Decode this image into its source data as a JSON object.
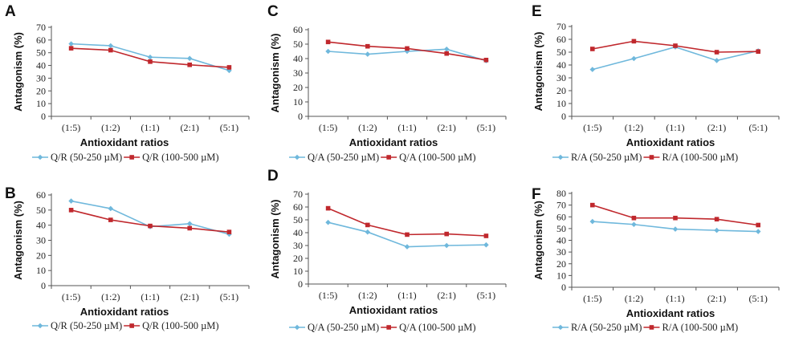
{
  "series_styles": {
    "low": {
      "color": "#6fb8dc",
      "marker": "diamond"
    },
    "high": {
      "color": "#c0282d",
      "marker": "square"
    }
  },
  "chart_data": [
    {
      "panel": "A",
      "type": "line",
      "xlabel": "Antioxidant ratios",
      "ylabel": "Antagonism (%)",
      "categories": [
        "(1:5)",
        "(1:2)",
        "(1:1)",
        "(2:1)",
        "(5:1)"
      ],
      "ylim": [
        0,
        70
      ],
      "ytick_step": 10,
      "series": [
        {
          "name": "Q/R (50-250 µM)",
          "style": "low",
          "values": [
            57,
            55.5,
            46.5,
            45.5,
            36
          ]
        },
        {
          "name": "Q/R (100-500 µM)",
          "style": "high",
          "values": [
            53.5,
            52,
            43,
            40.5,
            38.5
          ]
        }
      ]
    },
    {
      "panel": "B",
      "type": "line",
      "xlabel": "Antioxidant ratios",
      "ylabel": "Antagonism (%)",
      "categories": [
        "(1:5)",
        "(1:2)",
        "(1:1)",
        "(2:1)",
        "(5:1)"
      ],
      "ylim": [
        0,
        60
      ],
      "ytick_step": 10,
      "series": [
        {
          "name": "Q/R (50-250 µM)",
          "style": "low",
          "values": [
            56,
            51,
            39,
            41,
            34
          ]
        },
        {
          "name": "Q/R (100-500 µM)",
          "style": "high",
          "values": [
            50,
            43.5,
            39.5,
            38,
            35.5
          ]
        }
      ]
    },
    {
      "panel": "C",
      "type": "line",
      "xlabel": "Antioxidant ratios",
      "ylabel": "Antagonism (%)",
      "categories": [
        "(1:5)",
        "(1:2)",
        "(1:1)",
        "(2:1)",
        "(5:1)"
      ],
      "ylim": [
        0,
        60
      ],
      "ytick_step": 10,
      "series": [
        {
          "name": "Q/A (50-250 µM)",
          "style": "low",
          "values": [
            45,
            43,
            45,
            46.5,
            38.5
          ]
        },
        {
          "name": "Q/A (100-500 µM)",
          "style": "high",
          "values": [
            51.5,
            48.5,
            47,
            43.5,
            39
          ]
        }
      ]
    },
    {
      "panel": "D",
      "type": "line",
      "xlabel": "Antioxidant ratios",
      "ylabel": "Antagonism (%)",
      "categories": [
        "(1:5)",
        "(1:2)",
        "(1:1)",
        "(2:1)",
        "(5:1)"
      ],
      "ylim": [
        0,
        70
      ],
      "ytick_step": 10,
      "series": [
        {
          "name": "Q/A (50-250 µM)",
          "style": "low",
          "values": [
            48,
            40.5,
            29,
            30,
            30.5
          ]
        },
        {
          "name": "Q/A (100-500 µM)",
          "style": "high",
          "values": [
            59,
            46,
            38.5,
            39,
            37.5
          ]
        }
      ]
    },
    {
      "panel": "E",
      "type": "line",
      "xlabel": "Antioxidant ratios",
      "ylabel": "Antagonism (%)",
      "categories": [
        "(1:5)",
        "(1:2)",
        "(1:1)",
        "(2:1)",
        "(5:1)"
      ],
      "ylim": [
        0,
        70
      ],
      "ytick_step": 10,
      "series": [
        {
          "name": "R/A (50-250 µM)",
          "style": "low",
          "values": [
            36.5,
            45,
            54,
            43.5,
            51
          ]
        },
        {
          "name": "R/A (100-500 µM)",
          "style": "high",
          "values": [
            52.5,
            58.5,
            55,
            50,
            50.5
          ]
        }
      ]
    },
    {
      "panel": "F",
      "type": "line",
      "xlabel": "Antioxidant ratios",
      "ylabel": "Antagonism (%)",
      "categories": [
        "(1:5)",
        "(1:2)",
        "(1:1)",
        "(2:1)",
        "(5:1)"
      ],
      "ylim": [
        0,
        80
      ],
      "ytick_step": 10,
      "series": [
        {
          "name": "R/A (50-250 µM)",
          "style": "low",
          "values": [
            56,
            53.5,
            49.5,
            48.5,
            47.5
          ]
        },
        {
          "name": "R/A (100-500 µM)",
          "style": "high",
          "values": [
            70,
            59,
            59,
            58,
            53
          ]
        }
      ]
    }
  ]
}
